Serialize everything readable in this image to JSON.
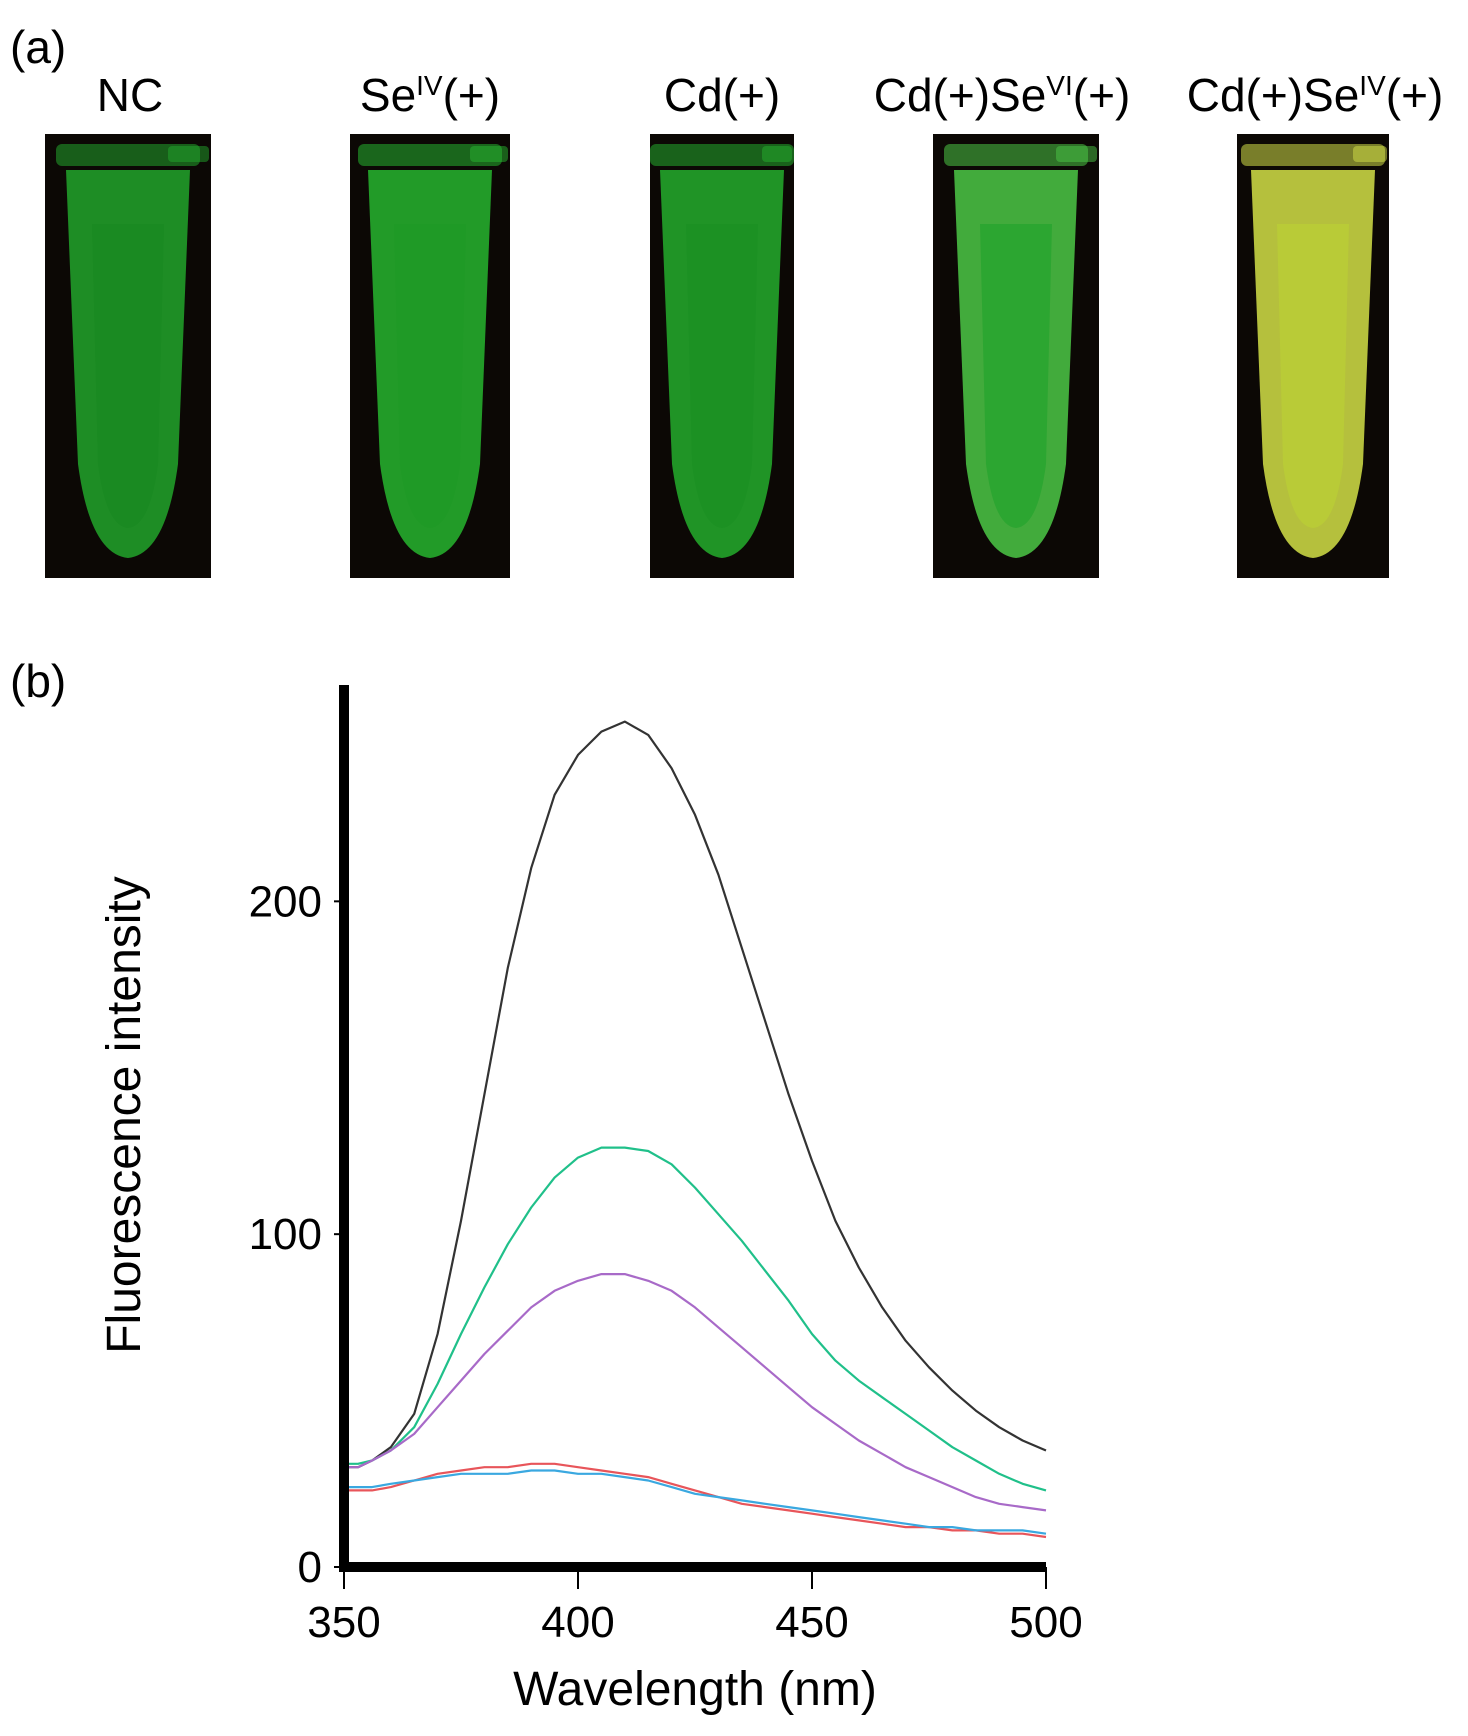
{
  "panel_a": {
    "label": "(a)",
    "tubes": [
      {
        "name": "NC",
        "base": "NC",
        "sup": "",
        "tail": "",
        "glow": "#1a8a22",
        "wall": "#22a52b"
      },
      {
        "name": "SeIV(+)",
        "base": "Se",
        "sup": "IV",
        "tail": "(+)",
        "glow": "#1f9a26",
        "wall": "#27b52f"
      },
      {
        "name": "Cd(+)",
        "base": "Cd(+)",
        "sup": "",
        "tail": "",
        "glow": "#1c9024",
        "wall": "#25ad2d"
      },
      {
        "name": "Cd(+)SeVI(+)",
        "base": "Cd(+)Se",
        "sup": "VI",
        "tail": "(+)",
        "glow": "#2aa530",
        "wall": "#4cc846"
      },
      {
        "name": "Cd(+)SeIV(+)",
        "base": "Cd(+)Se",
        "sup": "IV",
        "tail": "(+)",
        "glow": "#b9cc36",
        "wall": "#d3e048"
      }
    ]
  },
  "panel_b": {
    "label": "(b)"
  },
  "chart_data": {
    "type": "line",
    "title": "",
    "xlabel": "Wavelength (nm)",
    "ylabel": "Fluorescence intensity",
    "xlim": [
      350,
      500
    ],
    "ylim": [
      0,
      265
    ],
    "xticks": [
      350,
      400,
      450,
      500
    ],
    "yticks": [
      0,
      100,
      200
    ],
    "xtick_labels": [
      "350",
      "400",
      "450",
      "500"
    ],
    "ytick_labels": [
      "0",
      "100",
      "200"
    ],
    "grid": false,
    "legend": "none",
    "series": [
      {
        "name": "black",
        "color": "#333333",
        "x": [
          350,
          353,
          356,
          360,
          365,
          370,
          375,
          380,
          385,
          390,
          395,
          400,
          405,
          410,
          415,
          420,
          425,
          430,
          435,
          440,
          445,
          450,
          455,
          460,
          465,
          470,
          475,
          480,
          485,
          490,
          495,
          500
        ],
        "y": [
          30,
          30,
          32,
          36,
          46,
          70,
          104,
          142,
          180,
          210,
          232,
          244,
          251,
          254,
          250,
          240,
          226,
          208,
          186,
          164,
          142,
          122,
          104,
          90,
          78,
          68,
          60,
          53,
          47,
          42,
          38,
          35
        ]
      },
      {
        "name": "green",
        "color": "#20c08a",
        "x": [
          350,
          353,
          356,
          360,
          365,
          370,
          375,
          380,
          385,
          390,
          395,
          400,
          405,
          410,
          415,
          420,
          425,
          430,
          435,
          440,
          445,
          450,
          455,
          460,
          465,
          470,
          475,
          480,
          485,
          490,
          495,
          500
        ],
        "y": [
          31,
          31,
          32,
          35,
          42,
          55,
          70,
          84,
          97,
          108,
          117,
          123,
          126,
          126,
          125,
          121,
          114,
          106,
          98,
          89,
          80,
          70,
          62,
          56,
          51,
          46,
          41,
          36,
          32,
          28,
          25,
          23
        ]
      },
      {
        "name": "purple",
        "color": "#a86ac8",
        "x": [
          350,
          353,
          356,
          360,
          365,
          370,
          375,
          380,
          385,
          390,
          395,
          400,
          405,
          410,
          415,
          420,
          425,
          430,
          435,
          440,
          445,
          450,
          455,
          460,
          465,
          470,
          475,
          480,
          485,
          490,
          495,
          500
        ],
        "y": [
          30,
          30,
          32,
          35,
          40,
          48,
          56,
          64,
          71,
          78,
          83,
          86,
          88,
          88,
          86,
          83,
          78,
          72,
          66,
          60,
          54,
          48,
          43,
          38,
          34,
          30,
          27,
          24,
          21,
          19,
          18,
          17
        ]
      },
      {
        "name": "red",
        "color": "#e8555a",
        "x": [
          350,
          353,
          356,
          360,
          365,
          370,
          375,
          380,
          385,
          390,
          395,
          400,
          405,
          410,
          415,
          420,
          425,
          430,
          435,
          440,
          445,
          450,
          455,
          460,
          465,
          470,
          475,
          480,
          485,
          490,
          495,
          500
        ],
        "y": [
          23,
          23,
          23,
          24,
          26,
          28,
          29,
          30,
          30,
          31,
          31,
          30,
          29,
          28,
          27,
          25,
          23,
          21,
          19,
          18,
          17,
          16,
          15,
          14,
          13,
          12,
          12,
          11,
          11,
          10,
          10,
          9
        ]
      },
      {
        "name": "blue",
        "color": "#3aa8e0",
        "x": [
          350,
          353,
          356,
          360,
          365,
          370,
          375,
          380,
          385,
          390,
          395,
          400,
          405,
          410,
          415,
          420,
          425,
          430,
          435,
          440,
          445,
          450,
          455,
          460,
          465,
          470,
          475,
          480,
          485,
          490,
          495,
          500
        ],
        "y": [
          24,
          24,
          24,
          25,
          26,
          27,
          28,
          28,
          28,
          29,
          29,
          28,
          28,
          27,
          26,
          24,
          22,
          21,
          20,
          19,
          18,
          17,
          16,
          15,
          14,
          13,
          12,
          12,
          11,
          11,
          11,
          10
        ]
      }
    ]
  }
}
